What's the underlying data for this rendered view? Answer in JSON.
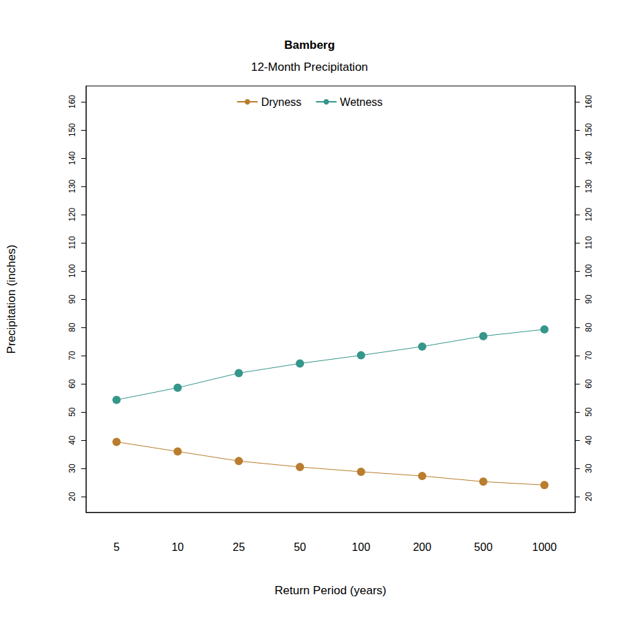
{
  "chart_data": {
    "type": "line",
    "title": "Bamberg",
    "subtitle": "12-Month Precipitation",
    "x_label": "Return Period (years)",
    "y_label": "Precipitation (inches)",
    "categories": [
      "5",
      "10",
      "25",
      "50",
      "100",
      "200",
      "500",
      "1000"
    ],
    "series": [
      {
        "name": "Dryness",
        "color": "#b97d2d",
        "marker": "circle",
        "line_style": "solid",
        "values": [
          39.4,
          36.0,
          32.6,
          30.5,
          28.8,
          27.3,
          25.3,
          24.1
        ]
      },
      {
        "name": "Wetness",
        "color": "#35968b",
        "marker": "circle",
        "line_style": "solid",
        "values": [
          54.3,
          58.6,
          63.8,
          67.2,
          70.1,
          73.2,
          76.9,
          79.3
        ]
      }
    ],
    "ylim": [
      14.4,
      165.6
    ],
    "yticks": [
      20,
      30,
      40,
      50,
      60,
      70,
      80,
      90,
      100,
      110,
      120,
      130,
      140,
      150,
      160
    ],
    "grid": false,
    "legend": "top"
  }
}
